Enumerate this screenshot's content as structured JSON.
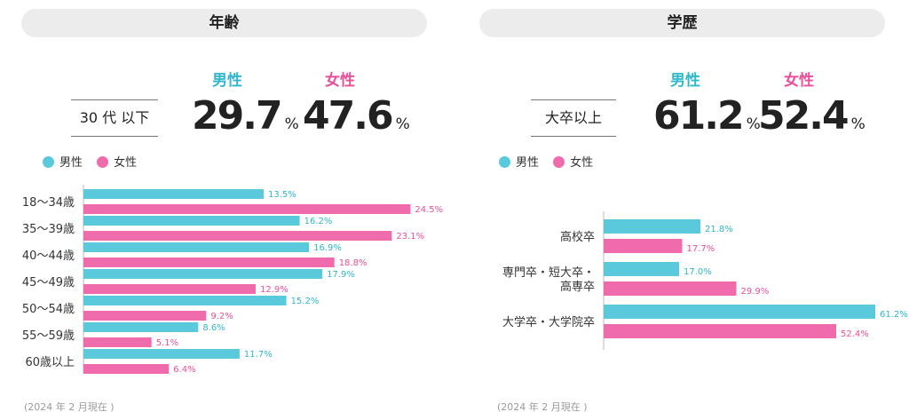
{
  "footer_note": "(2024 年 2 月現在 )",
  "colors": {
    "male": "#5bc9dc",
    "female": "#f06bab",
    "male_text": "#2fb7cc",
    "female_text": "#ea4f9a"
  },
  "legend": {
    "male": "男性",
    "female": "女性"
  },
  "age_panel": {
    "title": "年齢",
    "highlight": {
      "label": "30 代 以下",
      "male_head": "男性",
      "female_head": "女性",
      "male_value": "29.7",
      "female_value": "47.6",
      "unit": "%"
    }
  },
  "edu_panel": {
    "title": "学歴",
    "highlight": {
      "label": "大卒以上",
      "male_head": "男性",
      "female_head": "女性",
      "male_value": "61.2",
      "female_value": "52.4",
      "unit": "%"
    }
  },
  "chart_data": [
    {
      "type": "bar",
      "orientation": "horizontal",
      "categories": [
        "18～34歳",
        "35～39歳",
        "40～44歳",
        "45～49歳",
        "50～54歳",
        "55～59歳",
        "60歳以上"
      ],
      "series": [
        {
          "name": "男性",
          "values": [
            13.5,
            16.2,
            16.9,
            17.9,
            15.2,
            8.6,
            11.7
          ]
        },
        {
          "name": "女性",
          "values": [
            24.5,
            23.1,
            18.8,
            12.9,
            9.2,
            5.1,
            6.4
          ]
        }
      ],
      "value_labels": {
        "男性": [
          "13.5%",
          "16.2%",
          "16.9%",
          "17.9%",
          "15.2%",
          "8.6%",
          "11.7%"
        ],
        "女性": [
          "24.5%",
          "23.1%",
          "18.8%",
          "12.9%",
          "9.2%",
          "5.1%",
          "6.4%"
        ]
      },
      "xlim": [
        0,
        27
      ],
      "legend": "top-left",
      "grid": false
    },
    {
      "type": "bar",
      "orientation": "horizontal",
      "categories": [
        "高校卒",
        "専門卒・短大卒・高専卒",
        "大学卒・大学院卒"
      ],
      "category_lines": [
        [
          "高校卒"
        ],
        [
          "専門卒・短大卒・",
          "高専卒"
        ],
        [
          "大学卒・大学院卒"
        ]
      ],
      "series": [
        {
          "name": "男性",
          "values": [
            21.8,
            17.0,
            61.2
          ]
        },
        {
          "name": "女性",
          "values": [
            17.7,
            29.9,
            52.4
          ]
        }
      ],
      "value_labels": {
        "男性": [
          "21.8%",
          "17.0%",
          "61.2%"
        ],
        "女性": [
          "17.7%",
          "29.9%",
          "52.4%"
        ]
      },
      "xlim": [
        0,
        66
      ],
      "legend": "top-left",
      "grid": false
    }
  ]
}
